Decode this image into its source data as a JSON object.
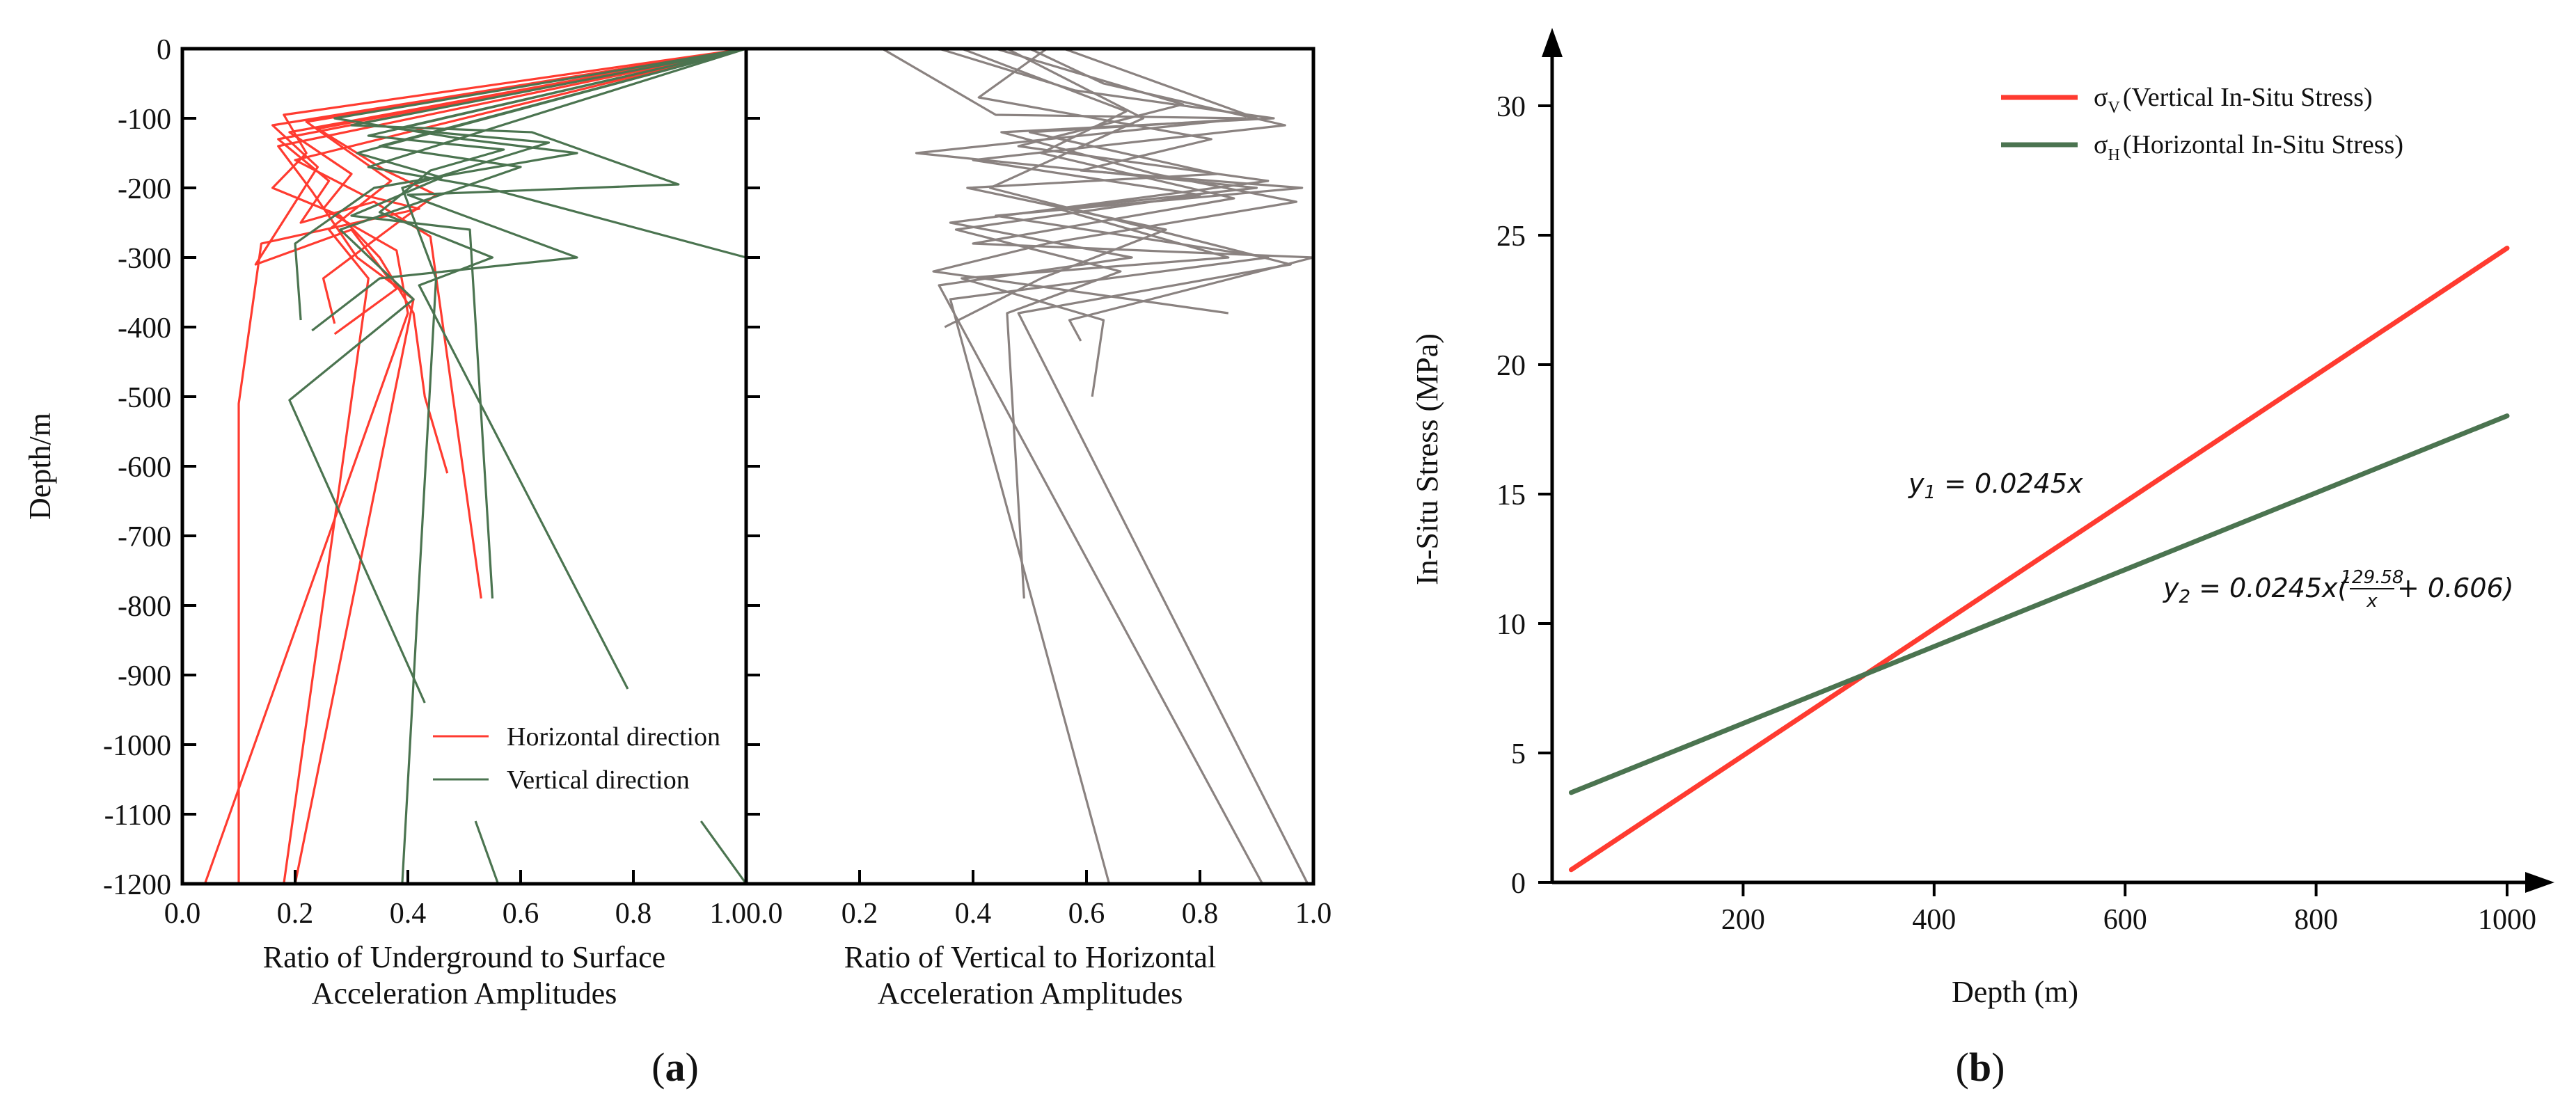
{
  "chart_data": [
    {
      "type": "line",
      "panel": "a-left",
      "xlabel_line1": "Ratio of Underground to Surface",
      "xlabel_line2": "Acceleration Amplitudes",
      "ylabel": "Depth/m",
      "xlim": [
        0.0,
        1.0
      ],
      "ylim": [
        -1200,
        0
      ],
      "xticks": [
        "0.0",
        "0.2",
        "0.4",
        "0.6",
        "0.8",
        "1.0"
      ],
      "yticks": [
        "0",
        "-100",
        "-200",
        "-300",
        "-400",
        "-500",
        "-600",
        "-700",
        "-800",
        "-900",
        "-1000",
        "-1100",
        "-1200"
      ],
      "colors": {
        "horizontal": "#ff3b30",
        "vertical": "#4b7450"
      },
      "legend": [
        "Horizontal direction",
        "Vertical direction"
      ],
      "series": [
        {
          "name": "Horizontal direction",
          "lines": [
            [
              [
                1.0,
                0
              ],
              [
                0.18,
                -95
              ],
              [
                0.22,
                -150
              ],
              [
                0.16,
                -200
              ],
              [
                0.28,
                -240
              ],
              [
                0.35,
                -300
              ],
              [
                0.41,
                -380
              ],
              [
                0.43,
                -500
              ],
              [
                0.47,
                -610
              ]
            ],
            [
              [
                1.0,
                0
              ],
              [
                0.16,
                -110
              ],
              [
                0.24,
                -170
              ],
              [
                0.13,
                -310
              ],
              [
                0.3,
                -260
              ],
              [
                0.38,
                -345
              ],
              [
                0.27,
                -410
              ]
            ],
            [
              [
                1.0,
                0
              ],
              [
                0.17,
                -130
              ],
              [
                0.26,
                -190
              ],
              [
                0.21,
                -250
              ],
              [
                0.34,
                -220
              ],
              [
                0.44,
                -270
              ],
              [
                0.53,
                -790
              ]
            ],
            [
              [
                1.0,
                0
              ],
              [
                0.2,
                -160
              ],
              [
                0.32,
                -210
              ],
              [
                0.42,
                -230
              ],
              [
                0.14,
                -280
              ],
              [
                0.1,
                -510
              ],
              [
                0.1,
                -1200
              ]
            ],
            [
              [
                1.0,
                0
              ],
              [
                0.19,
                -120
              ],
              [
                0.3,
                -180
              ],
              [
                0.25,
                -230
              ],
              [
                0.38,
                -290
              ],
              [
                0.4,
                -380
              ],
              [
                0.04,
                -1200
              ]
            ],
            [
              [
                1.0,
                0
              ],
              [
                0.22,
                -105
              ],
              [
                0.29,
                -145
              ],
              [
                0.37,
                -190
              ],
              [
                0.26,
                -260
              ],
              [
                0.33,
                -330
              ],
              [
                0.18,
                -1200
              ]
            ],
            [
              [
                1.0,
                0
              ],
              [
                0.17,
                -140
              ],
              [
                0.23,
                -205
              ],
              [
                0.31,
                -300
              ],
              [
                0.41,
                -360
              ],
              [
                0.2,
                -1200
              ]
            ],
            [
              [
                1.0,
                0
              ],
              [
                0.24,
                -115
              ],
              [
                0.36,
                -175
              ],
              [
                0.45,
                -210
              ],
              [
                0.39,
                -245
              ],
              [
                0.25,
                -330
              ],
              [
                0.27,
                -395
              ]
            ]
          ]
        },
        {
          "name": "Vertical direction",
          "lines": [
            [
              [
                1.0,
                0
              ],
              [
                0.27,
                -100
              ],
              [
                0.5,
                -130
              ],
              [
                0.7,
                -150
              ],
              [
                0.34,
                -200
              ],
              [
                0.2,
                -280
              ],
              [
                0.21,
                -390
              ]
            ],
            [
              [
                1.0,
                0
              ],
              [
                0.3,
                -110
              ],
              [
                0.62,
                -120
              ],
              [
                0.88,
                -195
              ],
              [
                0.4,
                -210
              ],
              [
                0.7,
                -300
              ],
              [
                0.35,
                -330
              ],
              [
                0.23,
                -405
              ]
            ],
            [
              [
                1.0,
                0
              ],
              [
                0.33,
                -125
              ],
              [
                0.57,
                -145
              ],
              [
                0.44,
                -175
              ],
              [
                0.35,
                -235
              ],
              [
                0.55,
                -300
              ],
              [
                0.42,
                -340
              ],
              [
                0.79,
                -920
              ]
            ],
            [
              [
                1.0,
                0
              ],
              [
                0.35,
                -140
              ],
              [
                0.6,
                -170
              ],
              [
                0.28,
                -260
              ],
              [
                0.41,
                -360
              ],
              [
                0.19,
                -505
              ],
              [
                0.43,
                -940
              ]
            ],
            [
              [
                1.0,
                0
              ],
              [
                0.31,
                -150
              ],
              [
                0.46,
                -185
              ],
              [
                0.3,
                -240
              ],
              [
                0.51,
                -260
              ],
              [
                0.55,
                -790
              ]
            ],
            [
              [
                1.0,
                0
              ],
              [
                0.38,
                -115
              ],
              [
                0.65,
                -135
              ],
              [
                0.39,
                -200
              ],
              [
                0.45,
                -330
              ],
              [
                0.39,
                -1200
              ]
            ],
            [
              [
                1.0,
                0
              ],
              [
                0.33,
                -170
              ],
              [
                0.54,
                -200
              ],
              [
                1.0,
                -300
              ]
            ],
            [
              [
                0.52,
                -1110
              ],
              [
                0.56,
                -1200
              ]
            ],
            [
              [
                0.92,
                -1110
              ],
              [
                1.0,
                -1200
              ]
            ]
          ]
        }
      ]
    },
    {
      "type": "line",
      "panel": "a-right",
      "xlabel_line1": "Ratio of Vertical to Horizontal",
      "xlabel_line2": "Acceleration Amplitudes",
      "xlim": [
        0.0,
        1.0
      ],
      "ylim": [
        -1200,
        0
      ],
      "xticks": [
        "0.0",
        "0.2",
        "0.4",
        "0.6",
        "0.8",
        "1.0"
      ],
      "color": "#8a8280",
      "lines": [
        [
          [
            0.24,
            0
          ],
          [
            0.44,
            -95
          ],
          [
            0.88,
            -100
          ],
          [
            0.3,
            -150
          ],
          [
            0.9,
            -200
          ],
          [
            0.55,
            -230
          ],
          [
            0.85,
            -300
          ],
          [
            0.38,
            -330
          ],
          [
            0.63,
            -390
          ],
          [
            0.61,
            -500
          ]
        ],
        [
          [
            0.34,
            0
          ],
          [
            0.58,
            -60
          ],
          [
            0.93,
            -100
          ],
          [
            0.45,
            -120
          ],
          [
            0.72,
            -180
          ],
          [
            0.97,
            -220
          ],
          [
            0.53,
            -280
          ],
          [
            0.33,
            -320
          ],
          [
            0.85,
            -380
          ]
        ],
        [
          [
            0.44,
            0
          ],
          [
            0.77,
            -80
          ],
          [
            0.48,
            -140
          ],
          [
            0.92,
            -190
          ],
          [
            0.36,
            -250
          ],
          [
            0.68,
            -300
          ],
          [
            0.34,
            -340
          ],
          [
            0.91,
            -1200
          ]
        ],
        [
          [
            0.5,
            0
          ],
          [
            0.63,
            -50
          ],
          [
            0.95,
            -110
          ],
          [
            0.4,
            -160
          ],
          [
            0.8,
            -210
          ],
          [
            0.37,
            -260
          ],
          [
            0.66,
            -320
          ],
          [
            0.46,
            -380
          ],
          [
            0.49,
            -790
          ]
        ],
        [
          [
            0.53,
            0
          ],
          [
            0.41,
            -70
          ],
          [
            0.82,
            -130
          ],
          [
            0.59,
            -175
          ],
          [
            0.98,
            -200
          ],
          [
            0.44,
            -240
          ],
          [
            0.92,
            -300
          ],
          [
            0.36,
            -360
          ],
          [
            0.64,
            -1200
          ]
        ],
        [
          [
            0.38,
            0
          ],
          [
            0.67,
            -90
          ],
          [
            0.52,
            -150
          ],
          [
            0.86,
            -215
          ],
          [
            0.4,
            -280
          ],
          [
            1.0,
            -300
          ],
          [
            0.57,
            -390
          ],
          [
            0.59,
            -420
          ]
        ],
        [
          [
            0.46,
            0
          ],
          [
            0.7,
            -100
          ],
          [
            0.43,
            -200
          ],
          [
            0.96,
            -310
          ],
          [
            0.48,
            -380
          ],
          [
            0.99,
            -1200
          ]
        ],
        [
          [
            0.56,
            0
          ],
          [
            0.9,
            -100
          ],
          [
            0.5,
            -120
          ],
          [
            0.83,
            -180
          ],
          [
            0.39,
            -200
          ],
          [
            0.74,
            -260
          ],
          [
            0.52,
            -330
          ],
          [
            0.35,
            -400
          ]
        ]
      ]
    },
    {
      "type": "line",
      "panel": "b",
      "xlabel": "Depth (m)",
      "ylabel": "In-Situ Stress (MPa)",
      "xlim": [
        0,
        1050
      ],
      "ylim": [
        0,
        32
      ],
      "xticks": [
        200,
        400,
        600,
        800,
        1000
      ],
      "yticks": [
        0,
        5,
        10,
        15,
        20,
        25,
        30
      ],
      "series": [
        {
          "name_symbol": "σ",
          "name_sub": "V",
          "name_text": "(Vertical In-Situ Stress)",
          "color": "#ff3b30",
          "x": [
            20,
            1000
          ],
          "y": [
            0.49,
            24.5
          ]
        },
        {
          "name_symbol": "σ",
          "name_sub": "H",
          "name_text": "(Horizontal In-Situ Stress)",
          "color": "#4b7450",
          "x": [
            20,
            1000
          ],
          "y": [
            3.47,
            18.02
          ]
        }
      ],
      "annotations": {
        "eq1": {
          "y": "y",
          "sub": "1",
          "rest": " = 0.0245x"
        },
        "eq2": {
          "y": "y",
          "sub": "2",
          "lead": " = 0.0245x(",
          "num": "129.58",
          "den": "x",
          "tail": " + 0.606)"
        }
      }
    }
  ],
  "panel_labels": {
    "a_open": "(",
    "a_letter": "a",
    "a_close": ")",
    "b_open": "(",
    "b_letter": "b",
    "b_close": ")"
  }
}
